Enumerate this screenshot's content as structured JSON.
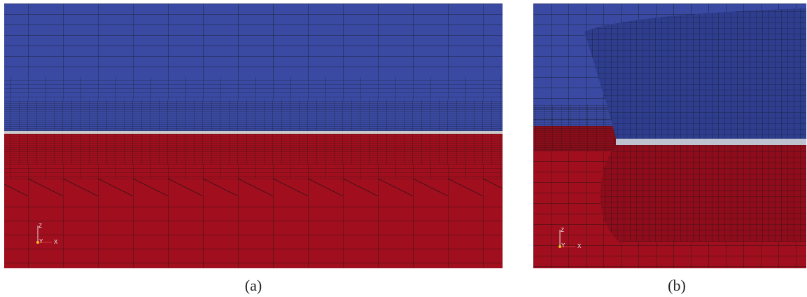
{
  "panels": [
    {
      "caption": "(a)",
      "axes": {
        "z": "Z",
        "y": "Y",
        "x": "X"
      }
    },
    {
      "caption": "(b)",
      "axes": {
        "z": "Z",
        "y": "Y",
        "x": "X"
      }
    }
  ]
}
